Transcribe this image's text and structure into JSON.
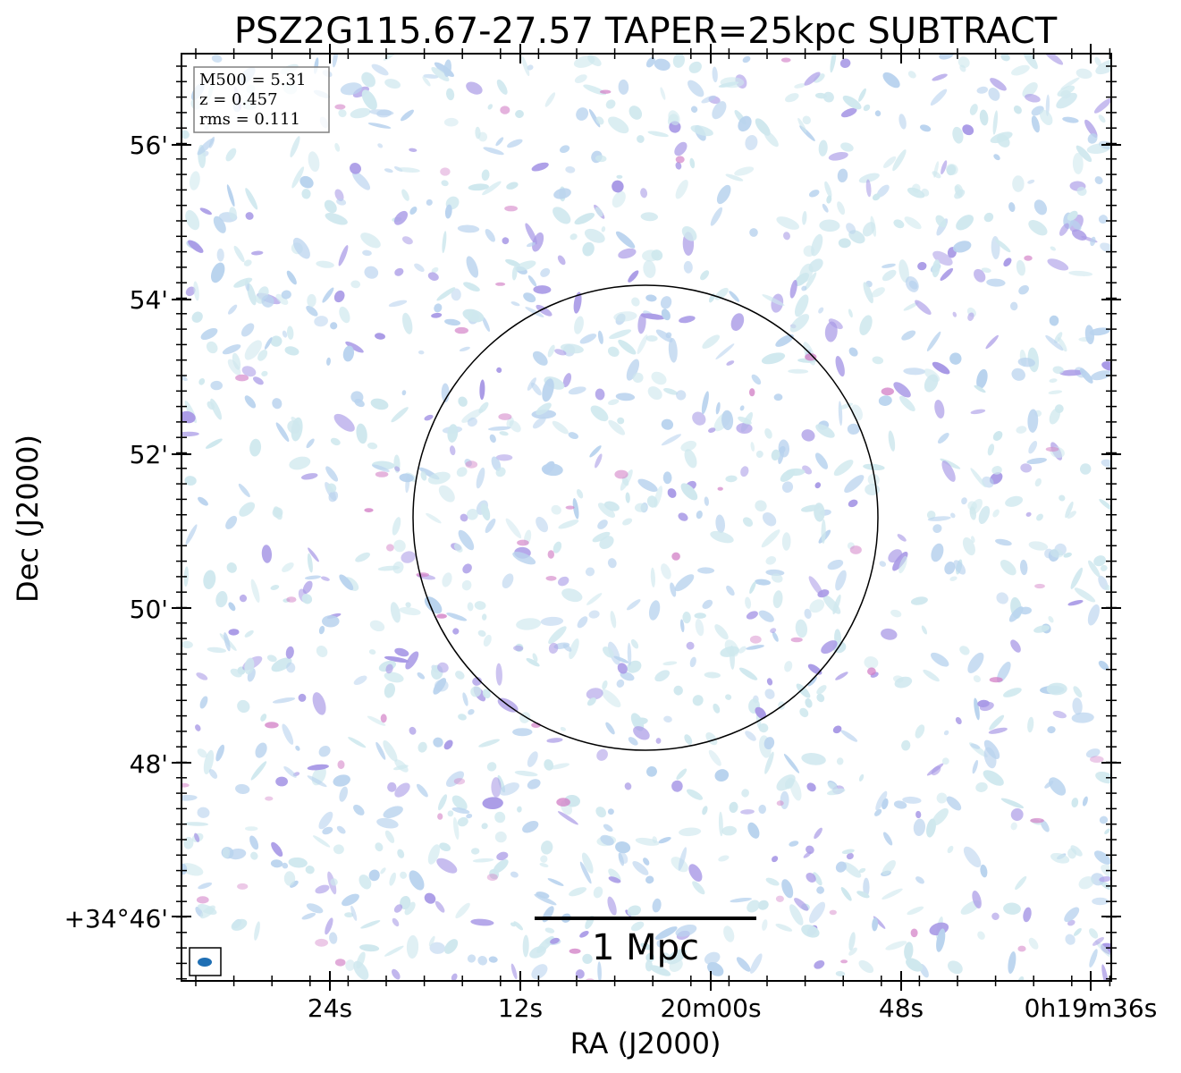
{
  "figure": {
    "title": "PSZ2G115.67-27.57 TAPER=25kpc SUBTRACT",
    "xlabel": "RA (J2000)",
    "ylabel": "Dec (J2000)",
    "x_ticks": [
      "24s",
      "12s",
      "20m00s",
      "48s",
      "0h19m36s"
    ],
    "y_ticks": [
      "56'",
      "54'",
      "52'",
      "50'",
      "48'",
      "+34°46'"
    ],
    "info_box": {
      "m500": "M500 = 5.31",
      "z": "z = 0.457",
      "rms": "rms = 0.111"
    },
    "scale_bar_label": "1 Mpc",
    "colors": {
      "noise_light": "#cfe8ee",
      "noise_mid": "#b9d3ee",
      "noise_dark": "#a99ae6",
      "noise_peak": "#d27fc6",
      "beam": "#1f6fb4",
      "frame": "#000000"
    },
    "overlays": [
      "r500-circle",
      "beam-ellipse",
      "scale-bar"
    ]
  }
}
